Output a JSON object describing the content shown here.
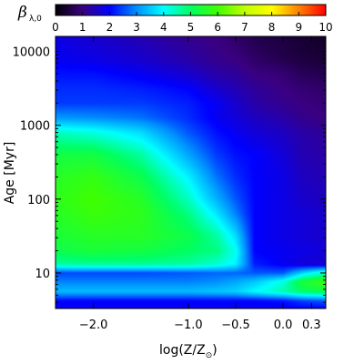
{
  "chart_data": {
    "type": "heatmap",
    "colorbar": {
      "label_symbol": "β",
      "label_sub": "λ,0",
      "range": [
        0,
        10
      ],
      "ticks": [
        "0",
        "1",
        "2",
        "3",
        "4",
        "5",
        "6",
        "7",
        "8",
        "9",
        "10"
      ],
      "colormap": [
        "#000000",
        "#3a0080",
        "#0000ff",
        "#0090ff",
        "#00ffff",
        "#00ff60",
        "#40ff00",
        "#c0ff00",
        "#ffff00",
        "#ff8000",
        "#ff0000"
      ]
    },
    "x_axis": {
      "label": "log(Z/Z",
      "label_sun": "⊙",
      "label_close": ")",
      "range": [
        -2.4,
        0.45
      ],
      "ticks": [
        {
          "value": -2.0,
          "label": "−2.0"
        },
        {
          "value": -1.0,
          "label": "−1.0"
        },
        {
          "value": -0.5,
          "label": "−0.5"
        },
        {
          "value": 0.0,
          "label": "0.0"
        },
        {
          "value": 0.3,
          "label": "0.3"
        }
      ]
    },
    "y_axis": {
      "label": "Age",
      "unit_label": "[Myr]",
      "scale": "log",
      "range": [
        3.3,
        16000
      ],
      "ticks": [
        {
          "value": 10,
          "label": "10"
        },
        {
          "value": 100,
          "label": "100"
        },
        {
          "value": 1000,
          "label": "1000"
        },
        {
          "value": 10000,
          "label": "10000"
        }
      ]
    },
    "field": {
      "x_nodes": [
        -2.4,
        -2.0,
        -1.5,
        -1.0,
        -0.7,
        -0.5,
        -0.3,
        0.0,
        0.2,
        0.45
      ],
      "log_age_nodes": [
        0.5,
        0.62,
        0.75,
        0.88,
        1.0,
        1.12,
        1.3,
        1.5,
        1.8,
        2.0,
        2.3,
        2.6,
        2.9,
        3.1,
        3.3,
        3.5,
        3.7,
        3.9,
        4.2
      ],
      "beta": [
        [
          1.9,
          1.9,
          1.9,
          1.9,
          1.9,
          1.9,
          1.9,
          1.9,
          1.9,
          1.9
        ],
        [
          2.0,
          2.0,
          2.0,
          2.0,
          2.0,
          2.0,
          2.0,
          2.1,
          2.4,
          2.6
        ],
        [
          3.4,
          3.4,
          3.4,
          3.4,
          3.5,
          3.6,
          4.0,
          4.5,
          5.0,
          5.2
        ],
        [
          2.9,
          2.9,
          2.9,
          2.9,
          3.0,
          3.2,
          3.5,
          4.2,
          5.4,
          5.9
        ],
        [
          2.5,
          2.5,
          2.5,
          2.6,
          2.7,
          2.7,
          2.6,
          2.6,
          3.6,
          4.5
        ],
        [
          4.6,
          4.7,
          4.7,
          4.6,
          4.3,
          3.9,
          2.2,
          1.9,
          1.7,
          1.6
        ],
        [
          5.2,
          5.4,
          5.3,
          5.0,
          4.8,
          4.1,
          2.0,
          1.9,
          1.8,
          1.7
        ],
        [
          5.4,
          5.6,
          5.6,
          5.2,
          4.6,
          3.7,
          2.0,
          1.8,
          1.7,
          1.6
        ],
        [
          5.6,
          5.9,
          5.7,
          4.8,
          3.8,
          2.9,
          2.0,
          1.8,
          1.7,
          1.6
        ],
        [
          5.7,
          6.0,
          5.6,
          4.4,
          3.3,
          2.6,
          2.0,
          1.8,
          1.6,
          1.5
        ],
        [
          5.6,
          5.8,
          5.2,
          3.9,
          2.8,
          2.3,
          2.0,
          1.8,
          1.5,
          1.4
        ],
        [
          5.3,
          5.3,
          4.6,
          3.2,
          2.4,
          2.1,
          2.0,
          1.7,
          1.4,
          1.3
        ],
        [
          4.4,
          4.2,
          3.7,
          2.6,
          2.1,
          1.9,
          1.7,
          1.5,
          1.3,
          1.2
        ],
        [
          3.1,
          3.0,
          2.8,
          2.3,
          1.9,
          1.7,
          1.5,
          1.3,
          1.1,
          1.0
        ],
        [
          2.4,
          2.4,
          2.4,
          2.2,
          1.9,
          1.6,
          1.3,
          1.1,
          1.0,
          0.9
        ],
        [
          2.3,
          2.3,
          2.2,
          2.0,
          1.6,
          1.4,
          1.2,
          1.0,
          0.9,
          0.8
        ],
        [
          2.1,
          2.1,
          1.9,
          1.6,
          1.3,
          1.2,
          1.0,
          0.9,
          0.7,
          0.6
        ],
        [
          1.9,
          1.8,
          1.6,
          1.3,
          1.1,
          1.0,
          0.8,
          0.6,
          0.5,
          0.4
        ],
        [
          1.8,
          1.6,
          1.4,
          1.1,
          1.0,
          0.8,
          0.6,
          0.5,
          0.4,
          0.3
        ]
      ]
    }
  }
}
